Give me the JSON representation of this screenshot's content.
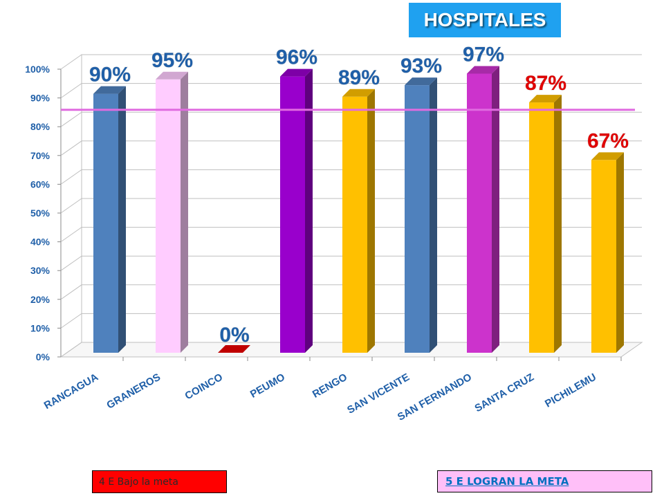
{
  "chart_data": {
    "type": "bar",
    "title": "HOSPITALES",
    "categories": [
      "RANCAGUA",
      "GRANEROS",
      "COINCO",
      "PEUMO",
      "RENGO",
      "SAN VICENTE",
      "SAN FERNANDO",
      "SANTA CRUZ",
      "PICHILEMU"
    ],
    "values": [
      90,
      95,
      0,
      96,
      89,
      93,
      97,
      87,
      67
    ],
    "data_labels": [
      "90%",
      "95%",
      "0%",
      "96%",
      "89%",
      "93%",
      "97%",
      "87%",
      "67%"
    ],
    "label_colors": [
      "#1f5fa8",
      "#1f5fa8",
      "#1f5fa8",
      "#1f5fa8",
      "#1f5fa8",
      "#1f5fa8",
      "#1f5fa8",
      "#e00000",
      "#e00000"
    ],
    "bar_colors": [
      "#4f81bd",
      "#ffccff",
      "#c00000",
      "#9900cc",
      "#ffc000",
      "#4f81bd",
      "#cc33cc",
      "#ffc000",
      "#ffc000"
    ],
    "y_ticks": [
      "0%",
      "10%",
      "20%",
      "30%",
      "40%",
      "50%",
      "60%",
      "70%",
      "80%",
      "90%",
      "100%"
    ],
    "ylim": [
      0,
      100
    ],
    "goal_line": 89,
    "goal_color": "#e06be0",
    "grid": true,
    "legend": {
      "below": "4 E Bajo la meta",
      "meet": "5 E  LOGRAN LA META"
    }
  }
}
